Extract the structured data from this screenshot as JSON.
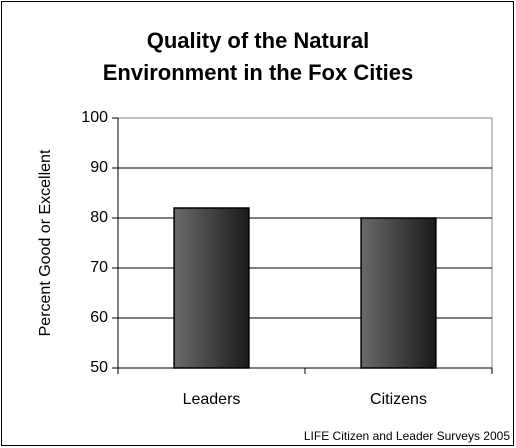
{
  "chart_data": {
    "type": "bar",
    "title": [
      "Quality of the Natural",
      "Environment in the Fox Cities"
    ],
    "y_label": "Percent Good or Excellent",
    "source": "LIFE Citizen and Leader Surveys 2005",
    "categories": [
      "Leaders",
      "Citizens"
    ],
    "values": [
      82,
      80
    ],
    "color": "#333333",
    "ylim": [
      50,
      100
    ],
    "yticks": [
      50,
      60,
      70,
      80,
      90,
      100
    ],
    "grid": true
  }
}
